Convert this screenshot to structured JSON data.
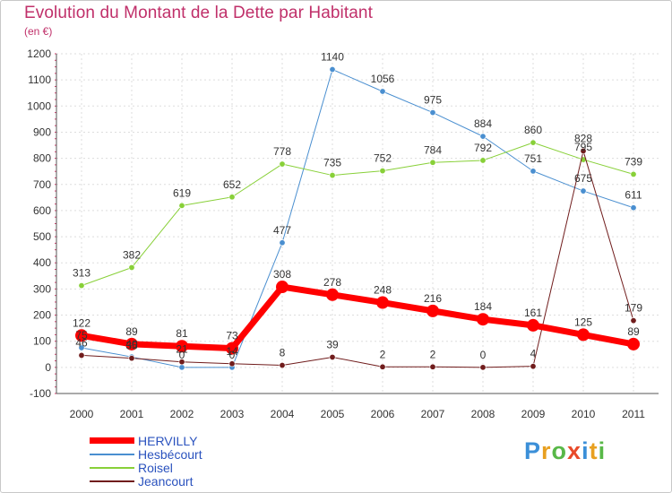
{
  "title": "Evolution du Montant de la Dette par Habitant",
  "subtitle": "(en €)",
  "brand": {
    "letters": [
      "P",
      "r",
      "o",
      "x",
      "i",
      "t",
      "i"
    ],
    "colors": [
      "#3b8fd8",
      "#e8a020",
      "#58b848",
      "#e84a2a",
      "#3b8fd8",
      "#e8a020",
      "#58b848"
    ]
  },
  "chart_data": {
    "type": "line",
    "title": "Evolution du Montant de la Dette par Habitant",
    "ylabel": "(en €)",
    "xlabel": "",
    "categories": [
      "2000",
      "2001",
      "2002",
      "2003",
      "2004",
      "2005",
      "2006",
      "2007",
      "2008",
      "2009",
      "2010",
      "2011"
    ],
    "yticks": [
      "-100",
      "0",
      "100",
      "200",
      "300",
      "400",
      "500",
      "600",
      "700",
      "800",
      "900",
      "1000",
      "1100",
      "1200"
    ],
    "ylim": [
      -100,
      1200
    ],
    "series": [
      {
        "name": "HERVILLY",
        "color": "#ff0000",
        "values": [
          122,
          89,
          81,
          73,
          308,
          278,
          248,
          216,
          184,
          161,
          125,
          89
        ],
        "labels": [
          "122",
          "89",
          "81",
          "73",
          "308",
          "278",
          "248",
          "216",
          "184",
          "161",
          "125",
          "89"
        ]
      },
      {
        "name": "Hesbécourt",
        "color": "#4a8fd0",
        "values": [
          75,
          40,
          0,
          0,
          477,
          1140,
          1056,
          975,
          884,
          751,
          675,
          611
        ],
        "labels": [
          "75",
          "40",
          "0",
          "0",
          "477",
          "1140",
          "1056",
          "975",
          "884",
          "751",
          "675",
          "611"
        ]
      },
      {
        "name": "Roisel",
        "color": "#88d038",
        "values": [
          313,
          382,
          619,
          652,
          778,
          735,
          752,
          784,
          792,
          860,
          795,
          739
        ],
        "labels": [
          "313",
          "382",
          "619",
          "652",
          "778",
          "735",
          "752",
          "784",
          "792",
          "860",
          "795",
          "739"
        ]
      },
      {
        "name": "Jeancourt",
        "color": "#701c1c",
        "values": [
          46,
          35,
          21,
          14,
          8,
          39,
          2,
          2,
          0,
          4,
          828,
          179
        ],
        "labels": [
          "46",
          "35",
          "21",
          "14",
          "8",
          "39",
          "2",
          "2",
          "0",
          "4",
          "828",
          "179"
        ]
      }
    ]
  }
}
